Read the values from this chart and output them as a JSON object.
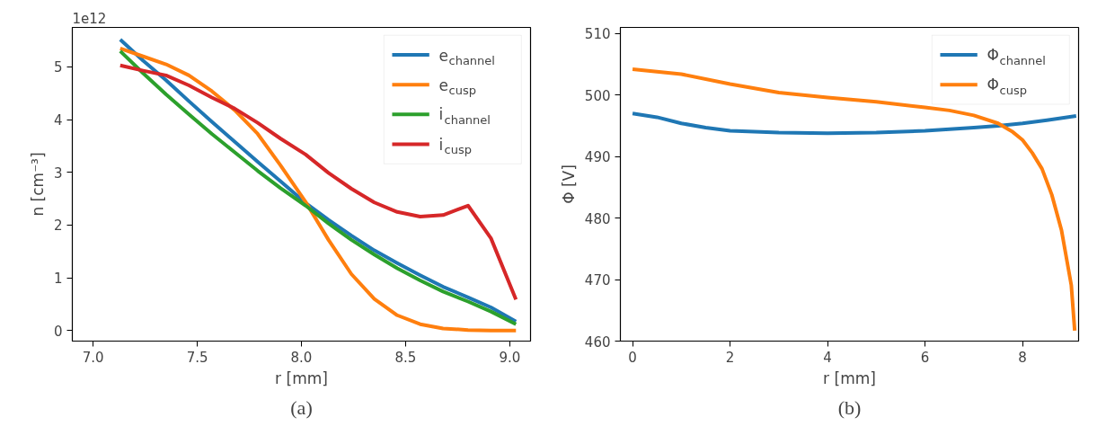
{
  "chart_data": [
    {
      "type": "line",
      "xlabel": "r [mm]",
      "ylabel": "n [cm⁻³]",
      "xlim": [
        6.9,
        9.1
      ],
      "ylim": [
        -0.2,
        5.75
      ],
      "xticks": [
        {
          "value": 7.0,
          "label": "7.0"
        },
        {
          "value": 7.5,
          "label": "7.5"
        },
        {
          "value": 8.0,
          "label": "8.0"
        },
        {
          "value": 8.5,
          "label": "8.5"
        },
        {
          "value": 9.0,
          "label": "9.0"
        }
      ],
      "yticks": [
        0,
        1,
        2,
        3,
        4,
        5
      ],
      "grid": false,
      "legend": "top right",
      "x": [
        7.13,
        7.24,
        7.35,
        7.46,
        7.57,
        7.68,
        7.79,
        7.9,
        8.02,
        8.13,
        8.24,
        8.35,
        8.46,
        8.57,
        8.68,
        8.8,
        8.91,
        9.03
      ],
      "annotations": [
        "1e12",
        "(a)"
      ],
      "series": [
        {
          "name": "e$_{channel}$",
          "color": "#1f77b4",
          "values": [
            5.52,
            5.12,
            4.75,
            4.35,
            3.96,
            3.58,
            3.2,
            2.83,
            2.42,
            2.1,
            1.8,
            1.52,
            1.28,
            1.05,
            0.83,
            0.63,
            0.44,
            0.17
          ]
        },
        {
          "name": "e$_{cusp}$",
          "color": "#ff7f0e",
          "values": [
            5.35,
            5.2,
            5.05,
            4.84,
            4.54,
            4.18,
            3.73,
            3.13,
            2.44,
            1.72,
            1.07,
            0.6,
            0.29,
            0.12,
            0.04,
            0.01,
            0.0,
            0.0
          ]
        },
        {
          "name": "i$_{channel}$",
          "color": "#2ca02c",
          "values": [
            5.3,
            4.88,
            4.48,
            4.1,
            3.73,
            3.38,
            3.03,
            2.7,
            2.37,
            2.03,
            1.72,
            1.44,
            1.18,
            0.95,
            0.74,
            0.55,
            0.36,
            0.12
          ]
        },
        {
          "name": "i$_{cusp}$",
          "color": "#d62728",
          "values": [
            5.03,
            4.93,
            4.84,
            4.65,
            4.42,
            4.21,
            3.94,
            3.64,
            3.34,
            2.99,
            2.69,
            2.43,
            2.25,
            2.16,
            2.19,
            2.37,
            1.75,
            0.59
          ]
        }
      ]
    },
    {
      "type": "line",
      "xlabel": "r [mm]",
      "ylabel": "Φ [V]",
      "xlim": [
        -0.25,
        9.15
      ],
      "ylim": [
        460,
        511
      ],
      "xticks": [
        0,
        2,
        4,
        6,
        8
      ],
      "yticks": [
        460,
        470,
        480,
        490,
        500,
        510
      ],
      "grid": false,
      "legend": "top right",
      "annotations": [
        "(b)"
      ],
      "series": [
        {
          "name": "Φ$_{channel}$",
          "color": "#1f77b4",
          "x": [
            0,
            0.5,
            1,
            1.5,
            2,
            3,
            4,
            5,
            6,
            7,
            7.5,
            8,
            8.5,
            9.1
          ],
          "values": [
            497.0,
            496.4,
            495.4,
            494.7,
            494.2,
            493.9,
            493.8,
            493.9,
            494.2,
            494.7,
            495.0,
            495.4,
            495.9,
            496.6
          ]
        },
        {
          "name": "Φ$_{cusp}$",
          "color": "#ff7f0e",
          "x": [
            0,
            1,
            2,
            3,
            4,
            5,
            6,
            6.5,
            7,
            7.5,
            7.8,
            8,
            8.2,
            8.4,
            8.6,
            8.8,
            9.0,
            9.07
          ],
          "values": [
            504.2,
            503.4,
            501.8,
            500.4,
            499.6,
            498.9,
            498.0,
            497.5,
            496.7,
            495.4,
            494.0,
            492.7,
            490.6,
            488.0,
            483.8,
            478.0,
            469.1,
            461.7
          ]
        }
      ]
    }
  ]
}
